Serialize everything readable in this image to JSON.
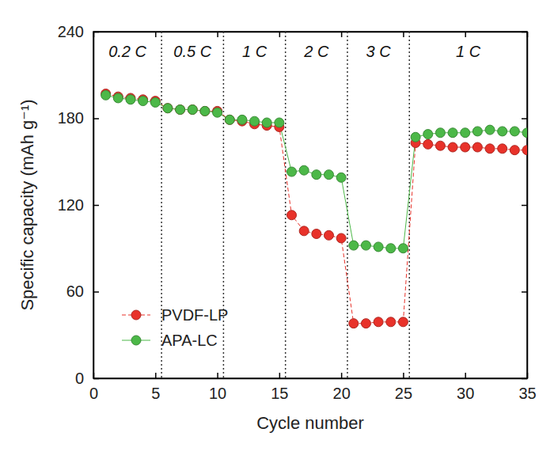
{
  "chart_data": {
    "type": "line",
    "x_label": "Cycle number",
    "y_label": "Specific capacity (mAh g⁻¹)",
    "x": [
      1,
      2,
      3,
      4,
      5,
      6,
      7,
      8,
      9,
      10,
      11,
      12,
      13,
      14,
      15,
      16,
      17,
      18,
      19,
      20,
      21,
      22,
      23,
      24,
      25,
      26,
      27,
      28,
      29,
      30,
      31,
      32,
      33,
      34,
      35
    ],
    "series": [
      {
        "name": "PVDF-LP",
        "color": "#e8322a",
        "marker": "circle",
        "line_style": "dashed",
        "values": [
          197,
          195,
          194,
          193,
          192,
          187,
          186,
          186,
          185,
          185,
          179,
          178,
          176,
          175,
          174,
          113,
          102,
          100,
          99,
          97,
          38,
          38,
          39,
          39,
          39,
          163,
          162,
          161,
          160,
          160,
          160,
          159,
          159,
          158,
          158
        ]
      },
      {
        "name": "APA-LC",
        "color": "#4cb848",
        "marker": "circle",
        "line_style": "solid",
        "values": [
          196,
          194,
          193,
          192,
          191,
          187,
          186,
          186,
          185,
          184,
          179,
          179,
          178,
          177,
          177,
          143,
          144,
          141,
          141,
          139,
          92,
          92,
          91,
          90,
          90,
          167,
          169,
          170,
          170,
          170,
          171,
          172,
          171,
          171,
          170
        ]
      }
    ],
    "xlim": [
      0,
      35
    ],
    "xticks": [
      0,
      5,
      10,
      15,
      20,
      25,
      30,
      35
    ],
    "ylim": [
      0,
      240
    ],
    "yticks": [
      0,
      60,
      120,
      180,
      240
    ],
    "legend": "lower left",
    "annotations": [
      {
        "text": "0.2 C",
        "x": [
          0,
          5.5
        ]
      },
      {
        "text": "0.5 C",
        "x": [
          5.5,
          10.5
        ]
      },
      {
        "text": "1 C",
        "x": [
          10.5,
          15.5
        ]
      },
      {
        "text": "2 C",
        "x": [
          15.5,
          20.5
        ]
      },
      {
        "text": "3 C",
        "x": [
          20.5,
          25.5
        ]
      },
      {
        "text": "1 C",
        "x": [
          25.5,
          35
        ]
      }
    ]
  }
}
